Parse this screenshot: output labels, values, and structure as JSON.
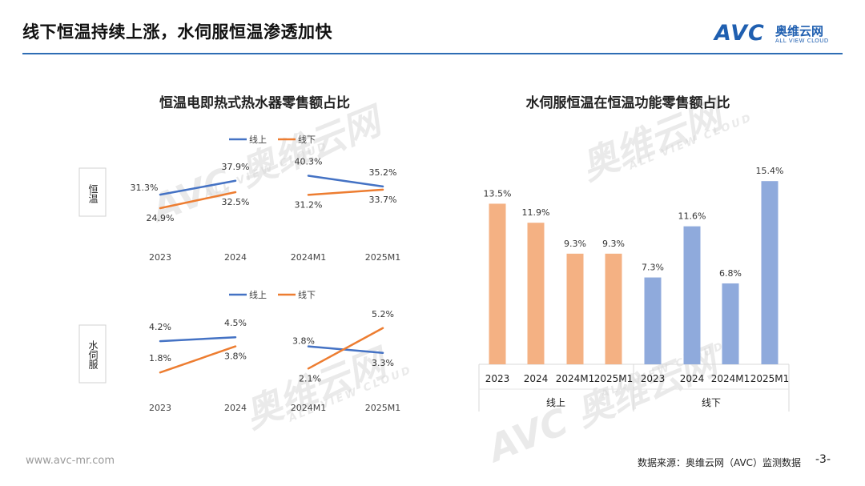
{
  "page": {
    "title": "线下恒温持续上涨，水伺服恒温渗透加快",
    "footer_url": "www.avc-mr.com",
    "source": "数据来源：奥维云网（AVC）监测数据",
    "page_number": "-3-"
  },
  "logo": {
    "mark": "AVC",
    "cn": "奥维云网",
    "en": "ALL VIEW CLOUD"
  },
  "watermark": {
    "cn": "奥维云网",
    "en": "ALL VIEW CLOUD",
    "mark": "AVC"
  },
  "colors": {
    "online": "#4472c4",
    "offline": "#ed7d31",
    "bar_online": "#f4b183",
    "bar_offline": "#8faadc",
    "title_rule": "#2e6db4"
  },
  "chart_data": [
    {
      "type": "line",
      "title": "恒温电即热式热水器零售额占比",
      "categories": [
        "2023",
        "2024",
        "2024M1",
        "2025M1"
      ],
      "row_label": "恒温",
      "legend": [
        "线上",
        "线下"
      ],
      "series": [
        {
          "name": "线上",
          "values": [
            31.3,
            37.9,
            40.3,
            35.2
          ],
          "labels": [
            "31.3%",
            "37.9%",
            "40.3%",
            "35.2%"
          ]
        },
        {
          "name": "线下",
          "values": [
            24.9,
            32.5,
            31.2,
            33.7
          ],
          "labels": [
            "24.9%",
            "32.5%",
            "31.2%",
            "33.7%"
          ]
        }
      ],
      "segments": [
        [
          0,
          1
        ],
        [
          2,
          3
        ]
      ]
    },
    {
      "type": "line",
      "categories": [
        "2023",
        "2024",
        "2024M1",
        "2025M1"
      ],
      "row_label": "水伺服",
      "legend": [
        "线上",
        "线下"
      ],
      "series": [
        {
          "name": "线上",
          "values": [
            4.2,
            4.5,
            3.8,
            3.3
          ],
          "labels": [
            "4.2%",
            "4.5%",
            "3.8%",
            "3.3%"
          ]
        },
        {
          "name": "线下",
          "values": [
            1.8,
            3.8,
            2.1,
            5.2
          ],
          "labels": [
            "1.8%",
            "3.8%",
            "2.1%",
            "5.2%"
          ]
        }
      ],
      "segments": [
        [
          0,
          1
        ],
        [
          2,
          3
        ]
      ]
    },
    {
      "type": "bar",
      "title": "水伺服恒温在恒温功能零售额占比",
      "categories": [
        "2023",
        "2024",
        "2024M1",
        "2025M1",
        "2023",
        "2024",
        "2024M1",
        "2025M1"
      ],
      "groups": [
        {
          "name": "线上",
          "values": [
            13.5,
            11.9,
            9.3,
            9.3
          ],
          "labels": [
            "13.5%",
            "11.9%",
            "9.3%",
            "9.3%"
          ]
        },
        {
          "name": "线下",
          "values": [
            7.3,
            11.6,
            6.8,
            15.4
          ],
          "labels": [
            "7.3%",
            "11.6%",
            "6.8%",
            "15.4%"
          ]
        }
      ],
      "ylim": [
        0,
        17.5
      ]
    }
  ]
}
